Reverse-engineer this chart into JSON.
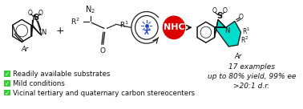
{
  "bg_color": "#ffffff",
  "green_check_color": "#33cc33",
  "bullet_texts": [
    "Readily available substrates",
    "Mild conditions",
    "Vicinal tertiary and quaternary carbon stereocenters"
  ],
  "stats_text_line1": "17 examples",
  "stats_text_line2": "up to 80% yield, 99% ee",
  "stats_text_line3": ">20:1 d.r.",
  "nhc_circle_color": "#dd0000",
  "nhc_text_color": "#ffffff",
  "nhc_text": "NHC",
  "photo_circle_color": "#ffffff",
  "photo_circle_edge": "#222222",
  "product_fill_color": "#00ddcc",
  "arrow_color": "#222222",
  "plus_color": "#222222",
  "text_color": "#111111",
  "fig_width": 3.78,
  "fig_height": 1.36,
  "dpi": 100
}
